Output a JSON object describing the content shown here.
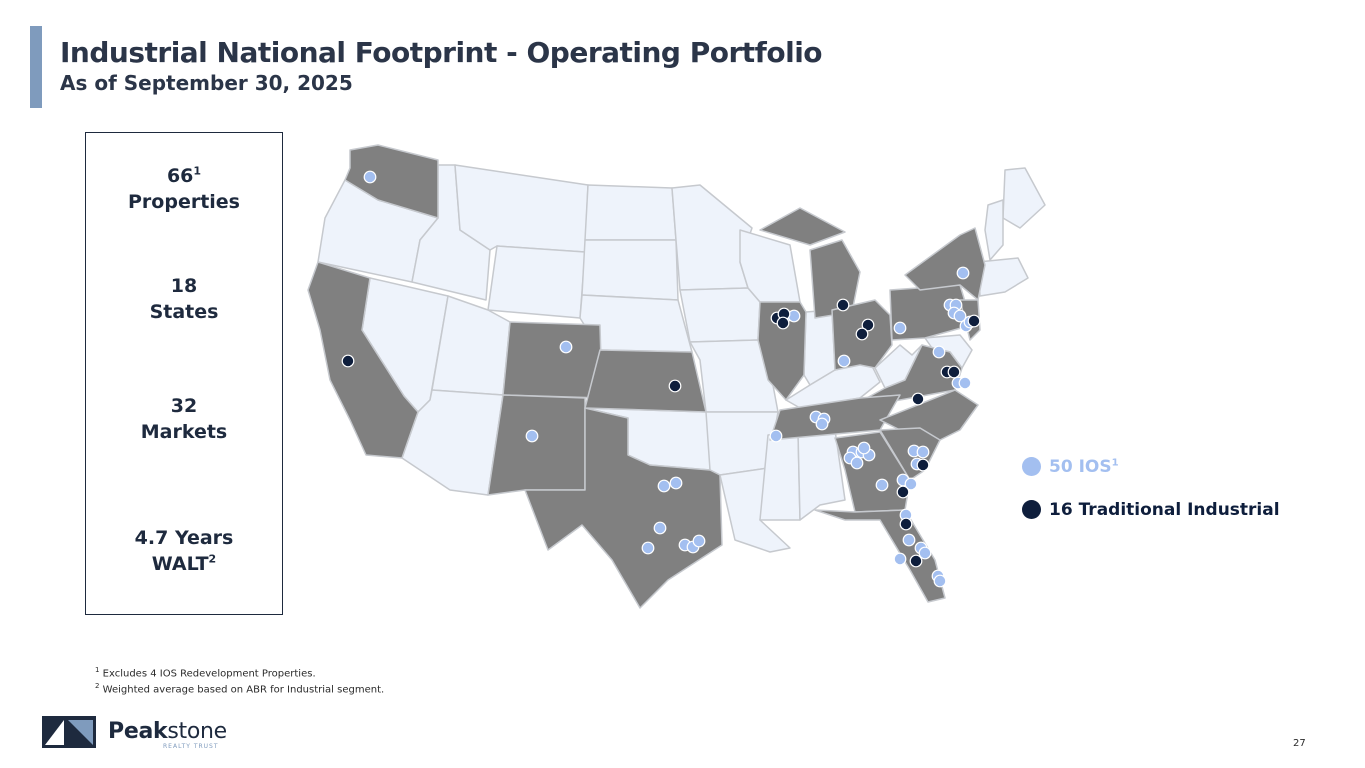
{
  "title": "Industrial National Footprint - Operating Portfolio",
  "subtitle": "As of September 30, 2025",
  "stats": {
    "properties": {
      "value": "66",
      "footnote": "1",
      "label": "Properties"
    },
    "states": {
      "value": "18",
      "label": "States"
    },
    "markets": {
      "value": "32",
      "label": "Markets"
    },
    "walt": {
      "value": "4.7",
      "unit": "Years",
      "label": "WALT",
      "footnote": "2"
    }
  },
  "legend": {
    "ios": {
      "label": "50 IOS",
      "footnote": "1",
      "color": "#a3bff0"
    },
    "traditional": {
      "label": "16 Traditional Industrial",
      "color": "#0e1e3c"
    }
  },
  "colors": {
    "active_state": "#808080",
    "inactive_state": "#eef3fb",
    "state_border": "#c6c9ce"
  },
  "footnotes": [
    {
      "mark": "1",
      "text": "Excludes 4 IOS Redevelopment Properties."
    },
    {
      "mark": "2",
      "text": "Weighted average based on ABR for Industrial segment."
    }
  ],
  "logo": {
    "name_bold": "Peak",
    "name_light": "stone",
    "tagline": "REALTY TRUST"
  },
  "page_number": "27"
}
